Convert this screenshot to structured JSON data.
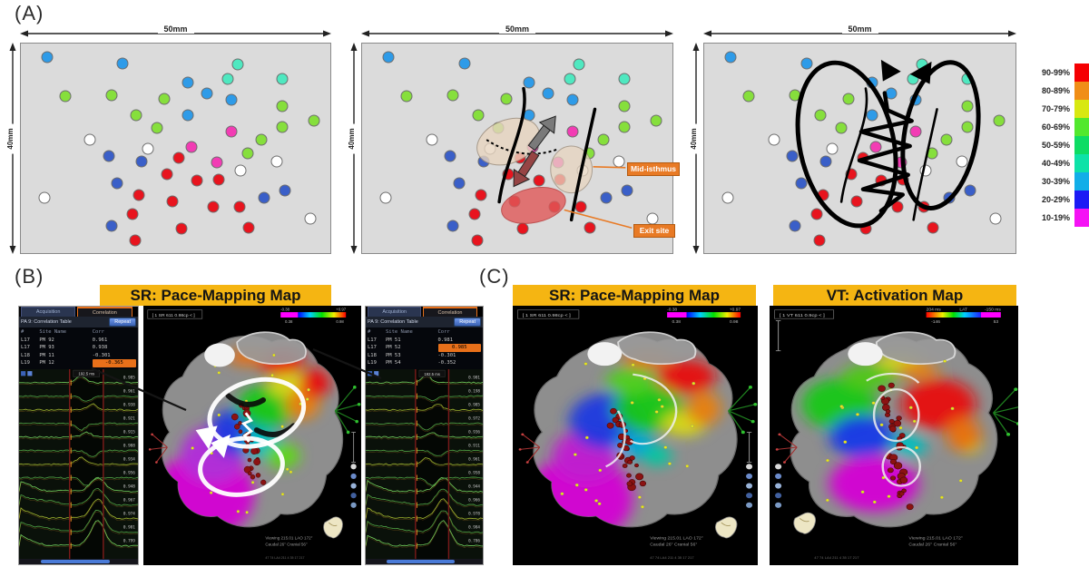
{
  "panel_a": {
    "label": "(A)",
    "width_label": "50mm",
    "height_label": "40mm",
    "legend": [
      {
        "range": "90-99%",
        "color": "#F50002"
      },
      {
        "range": "80-89%",
        "color": "#F08E17"
      },
      {
        "range": "70-79%",
        "color": "#D8E812"
      },
      {
        "range": "60-69%",
        "color": "#52E82E"
      },
      {
        "range": "50-59%",
        "color": "#0EDC64"
      },
      {
        "range": "40-49%",
        "color": "#0EE2A8"
      },
      {
        "range": "30-39%",
        "color": "#12AEE8"
      },
      {
        "range": "20-29%",
        "color": "#1B1BF5"
      },
      {
        "range": "10-19%",
        "color": "#F512F5"
      }
    ],
    "dot_colors": {
      "red": "#E8141E",
      "blue": "#2E9BE8",
      "dkblue": "#3A5FC8",
      "green": "#86DF3C",
      "cyan": "#4FE8C0",
      "magenta": "#F23CB4",
      "white": "#FFFFFF"
    },
    "dots": [
      [
        8.5,
        6.4,
        "blue"
      ],
      [
        32.9,
        9.4,
        "blue"
      ],
      [
        70,
        9.9,
        "cyan"
      ],
      [
        67,
        16.7,
        "cyan"
      ],
      [
        84.5,
        16.7,
        "cyan"
      ],
      [
        53.9,
        18.5,
        "blue"
      ],
      [
        60,
        23.6,
        "blue"
      ],
      [
        14.3,
        25.3,
        "green"
      ],
      [
        29.2,
        24.5,
        "green"
      ],
      [
        67.9,
        27,
        "blue"
      ],
      [
        46.4,
        26.6,
        "green"
      ],
      [
        84.5,
        30,
        "green"
      ],
      [
        53.9,
        34.3,
        "blue"
      ],
      [
        37.3,
        34.3,
        "green"
      ],
      [
        94.8,
        36.9,
        "green"
      ],
      [
        84.5,
        39.9,
        "green"
      ],
      [
        44,
        40.3,
        "green"
      ],
      [
        67.9,
        42.1,
        "magenta"
      ],
      [
        77.8,
        45.9,
        "green"
      ],
      [
        22.4,
        45.9,
        "white"
      ],
      [
        73.2,
        52.4,
        "green"
      ],
      [
        55.1,
        49.4,
        "magenta"
      ],
      [
        41.1,
        50.2,
        "white"
      ],
      [
        82.8,
        56.2,
        "white"
      ],
      [
        28.3,
        53.6,
        "dkblue"
      ],
      [
        39.1,
        56.2,
        "dkblue"
      ],
      [
        51,
        54.5,
        "red"
      ],
      [
        63.3,
        56.7,
        "magenta"
      ],
      [
        71.1,
        60.5,
        "white"
      ],
      [
        47.2,
        62.2,
        "red"
      ],
      [
        56.9,
        65.2,
        "red"
      ],
      [
        63.8,
        64.8,
        "red"
      ],
      [
        31.2,
        66.5,
        "dkblue"
      ],
      [
        85.4,
        70,
        "dkblue"
      ],
      [
        78.7,
        73.8,
        "dkblue"
      ],
      [
        7.6,
        73.8,
        "white"
      ],
      [
        38.2,
        72.5,
        "red"
      ],
      [
        49,
        75.5,
        "red"
      ],
      [
        62.1,
        78.1,
        "red"
      ],
      [
        70.6,
        78.1,
        "red"
      ],
      [
        36.2,
        81.5,
        "red"
      ],
      [
        29.2,
        87.1,
        "dkblue"
      ],
      [
        37,
        94,
        "red"
      ],
      [
        51.9,
        88.4,
        "red"
      ],
      [
        73.5,
        88,
        "red"
      ],
      [
        93.6,
        83.7,
        "white"
      ]
    ],
    "annotations": {
      "mid_isthmus": "Mid-isthmus",
      "exit_site": "Exit site"
    }
  },
  "panel_b": {
    "label": "(B)",
    "title": "SR: Pace-Mapping Map",
    "egm_left": {
      "tabs": [
        "Acquisition",
        "Correlation"
      ],
      "table_title": "PA 9: Correlation Table",
      "repeat_button": "Repeat",
      "columns": [
        "#",
        "Site Name",
        "Corr"
      ],
      "rows": [
        [
          "L17",
          "PM 92",
          "0.961"
        ],
        [
          "L17",
          "PM 93",
          "0.938"
        ],
        [
          "L18",
          "PM 11",
          "-0.301"
        ],
        [
          "L19",
          "PM 12",
          "-0.365"
        ]
      ],
      "highlight_row": 3,
      "caliper": "192.5 ms",
      "trace_values": [
        "0.985",
        "0.961",
        "0.938",
        "0.921",
        "0.915",
        "0.908",
        "0.934",
        "0.956",
        "0.948",
        "0.967",
        "0.974",
        "0.981",
        "0.799"
      ]
    },
    "egm_right": {
      "tabs": [
        "Acquisition",
        "Correlation"
      ],
      "table_title": "PA 9: Correlation Table",
      "repeat_button": "Repeat",
      "columns": [
        "#",
        "Site Name",
        "Corr"
      ],
      "rows": [
        [
          "L17",
          "PM 51",
          "0.981"
        ],
        [
          "L17",
          "PM 52",
          "0.985"
        ],
        [
          "L18",
          "PM 53",
          "-0.301"
        ],
        [
          "L19",
          "PM 54",
          "-0.352"
        ]
      ],
      "highlight_row": 1,
      "caliper": "192.5 ms",
      "trace_values": [
        "0.981",
        "0.198",
        "0.985",
        "0.972",
        "0.936",
        "0.911",
        "0.961",
        "0.958",
        "0.944",
        "0.966",
        "0.978",
        "0.984",
        "0.786"
      ]
    },
    "map": {
      "name": "1 SR 611 0.98cp",
      "colorbar": {
        "above": [
          "-0.38",
          "",
          "+0.97"
        ],
        "below": [
          "0.38",
          "0.98"
        ]
      },
      "footer1": "Viewing 215.01   LAO 172°",
      "footer2": "Caudal 26°   Cranial 56°",
      "ruler": "47 74 LA4 211 4 35 17 217"
    }
  },
  "panel_c": {
    "label": "(C)",
    "maps": [
      {
        "title": "SR: Pace-Mapping Map",
        "name": "1 SR 611 0.98cp",
        "colorbar": {
          "above": [
            "-0.38",
            "",
            "+0.97"
          ],
          "below": [
            "0.38",
            "0.98"
          ]
        },
        "footer1": "Viewing 215.01   LAO 172°",
        "footer2": "Caudal 26°   Cranial 56°",
        "ruler": "47 74 LA4 211 4 35 17 217"
      },
      {
        "title": "VT: Activation Map",
        "name": "1 VT 611 0.9cp",
        "colorbar": {
          "above": [
            "204 ms",
            "LAT",
            "-150 ms"
          ],
          "below": [
            "-146",
            "53"
          ]
        },
        "footer1": "Viewing 215.01   LAO 172°",
        "footer2": "Caudal 26°   Cranial 56°",
        "ruler": "47 74 LA4 211 4 35 17 217"
      }
    ]
  },
  "colors": {
    "title_bg": "#F5B512",
    "annotation_orange": "#E87A25"
  }
}
